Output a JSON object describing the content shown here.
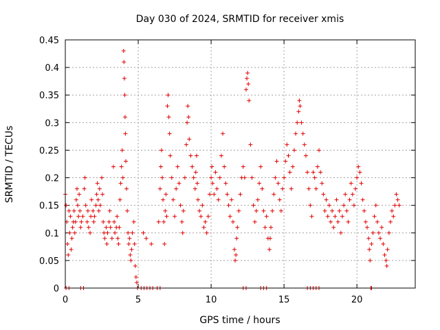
{
  "chart_data": {
    "type": "scatter",
    "title": "Day 030 of 2024, SRMTID for receiver xmis",
    "xlabel": "GPS time / hours",
    "ylabel": "SRMTID / TECUs",
    "xlim": [
      0,
      24
    ],
    "ylim": [
      0,
      0.45
    ],
    "xticks": [
      0,
      5,
      10,
      15,
      20
    ],
    "xtick_labels": [
      "0",
      "5",
      "10",
      "15",
      "20"
    ],
    "yticks": [
      0,
      0.05,
      0.1,
      0.15,
      0.2,
      0.25,
      0.3,
      0.35,
      0.4,
      0.45
    ],
    "ytick_labels": [
      "0",
      "0.05",
      "0.1",
      "0.15",
      "0.2",
      "0.25",
      "0.3",
      "0.35",
      "0.4",
      "0.45"
    ],
    "grid": true,
    "marker": "plus",
    "color": "#e00000",
    "series": [
      {
        "name": "SRMTID",
        "points": [
          [
            0.0,
            0.17
          ],
          [
            0.05,
            0.15
          ],
          [
            0.1,
            0.12
          ],
          [
            0.15,
            0.08
          ],
          [
            0.2,
            0.06
          ],
          [
            0.25,
            0.14
          ],
          [
            0.3,
            0.1
          ],
          [
            0.35,
            0.13
          ],
          [
            0.4,
            0.07
          ],
          [
            0.45,
            0.09
          ],
          [
            0.5,
            0.11
          ],
          [
            0.55,
            0.12
          ],
          [
            0.6,
            0.14
          ],
          [
            0.65,
            0.1
          ],
          [
            0.7,
            0.12
          ],
          [
            0.75,
            0.16
          ],
          [
            0.8,
            0.18
          ],
          [
            0.85,
            0.15
          ],
          [
            0.9,
            0.13
          ],
          [
            0.95,
            0.17
          ],
          [
            1.0,
            0.14
          ],
          [
            1.05,
            0.11
          ],
          [
            1.1,
            0.12
          ],
          [
            1.2,
            0.13
          ],
          [
            1.3,
            0.18
          ],
          [
            1.35,
            0.2
          ],
          [
            1.4,
            0.15
          ],
          [
            1.5,
            0.12
          ],
          [
            1.55,
            0.14
          ],
          [
            1.6,
            0.11
          ],
          [
            1.7,
            0.1
          ],
          [
            1.75,
            0.13
          ],
          [
            1.8,
            0.16
          ],
          [
            1.9,
            0.14
          ],
          [
            1.95,
            0.12
          ],
          [
            2.0,
            0.13
          ],
          [
            2.1,
            0.15
          ],
          [
            2.15,
            0.17
          ],
          [
            2.2,
            0.19
          ],
          [
            2.25,
            0.16
          ],
          [
            2.3,
            0.14
          ],
          [
            2.35,
            0.18
          ],
          [
            2.4,
            0.15
          ],
          [
            2.5,
            0.2
          ],
          [
            2.55,
            0.17
          ],
          [
            2.6,
            0.12
          ],
          [
            2.65,
            0.1
          ],
          [
            2.7,
            0.09
          ],
          [
            2.8,
            0.11
          ],
          [
            2.85,
            0.08
          ],
          [
            2.9,
            0.1
          ],
          [
            3.0,
            0.12
          ],
          [
            3.05,
            0.14
          ],
          [
            3.1,
            0.11
          ],
          [
            3.2,
            0.09
          ],
          [
            3.3,
            0.22
          ],
          [
            3.35,
            0.12
          ],
          [
            3.4,
            0.1
          ],
          [
            3.5,
            0.11
          ],
          [
            3.55,
            0.13
          ],
          [
            3.6,
            0.09
          ],
          [
            3.65,
            0.08
          ],
          [
            3.7,
            0.11
          ],
          [
            3.75,
            0.16
          ],
          [
            3.8,
            0.19
          ],
          [
            3.85,
            0.22
          ],
          [
            3.9,
            0.25
          ],
          [
            3.95,
            0.2
          ],
          [
            4.0,
            0.43
          ],
          [
            4.02,
            0.41
          ],
          [
            4.05,
            0.38
          ],
          [
            4.08,
            0.35
          ],
          [
            4.1,
            0.31
          ],
          [
            4.12,
            0.28
          ],
          [
            4.15,
            0.23
          ],
          [
            4.2,
            0.18
          ],
          [
            4.25,
            0.14
          ],
          [
            4.3,
            0.1
          ],
          [
            4.35,
            0.08
          ],
          [
            4.4,
            0.09
          ],
          [
            4.45,
            0.06
          ],
          [
            4.5,
            0.05
          ],
          [
            4.55,
            0.07
          ],
          [
            4.6,
            0.1
          ],
          [
            4.7,
            0.12
          ],
          [
            4.75,
            0.08
          ],
          [
            4.8,
            0.04
          ],
          [
            4.85,
            0.02
          ],
          [
            4.9,
            0.01
          ],
          [
            4.95,
            0.0
          ],
          [
            5.2,
            0.0
          ],
          [
            5.4,
            0.0
          ],
          [
            5.6,
            0.0
          ],
          [
            5.8,
            0.0
          ],
          [
            6.0,
            0.0
          ],
          [
            6.3,
            0.0
          ],
          [
            6.5,
            0.0
          ],
          [
            5.35,
            0.1
          ],
          [
            5.55,
            0.09
          ],
          [
            5.9,
            0.08
          ],
          [
            6.4,
            0.12
          ],
          [
            6.5,
            0.18
          ],
          [
            6.55,
            0.22
          ],
          [
            6.6,
            0.25
          ],
          [
            6.65,
            0.2
          ],
          [
            6.7,
            0.16
          ],
          [
            6.75,
            0.12
          ],
          [
            6.8,
            0.08
          ],
          [
            6.85,
            0.14
          ],
          [
            6.9,
            0.17
          ],
          [
            6.95,
            0.13
          ],
          [
            7.0,
            0.33
          ],
          [
            7.05,
            0.35
          ],
          [
            7.1,
            0.31
          ],
          [
            7.15,
            0.28
          ],
          [
            7.2,
            0.24
          ],
          [
            7.3,
            0.2
          ],
          [
            7.4,
            0.16
          ],
          [
            7.5,
            0.13
          ],
          [
            7.6,
            0.18
          ],
          [
            7.7,
            0.22
          ],
          [
            7.8,
            0.19
          ],
          [
            7.9,
            0.15
          ],
          [
            8.0,
            0.12
          ],
          [
            8.05,
            0.1
          ],
          [
            8.1,
            0.14
          ],
          [
            8.2,
            0.2
          ],
          [
            8.3,
            0.26
          ],
          [
            8.35,
            0.3
          ],
          [
            8.4,
            0.33
          ],
          [
            8.45,
            0.31
          ],
          [
            8.5,
            0.27
          ],
          [
            8.6,
            0.24
          ],
          [
            8.7,
            0.22
          ],
          [
            8.8,
            0.2
          ],
          [
            8.9,
            0.18
          ],
          [
            8.95,
            0.21
          ],
          [
            9.0,
            0.24
          ],
          [
            9.05,
            0.19
          ],
          [
            9.1,
            0.16
          ],
          [
            9.2,
            0.14
          ],
          [
            9.3,
            0.13
          ],
          [
            9.4,
            0.15
          ],
          [
            9.5,
            0.11
          ],
          [
            9.6,
            0.12
          ],
          [
            9.7,
            0.1
          ],
          [
            9.8,
            0.13
          ],
          [
            9.9,
            0.17
          ],
          [
            10.0,
            0.2
          ],
          [
            10.05,
            0.22
          ],
          [
            10.1,
            0.19
          ],
          [
            10.2,
            0.17
          ],
          [
            10.3,
            0.21
          ],
          [
            10.4,
            0.18
          ],
          [
            10.5,
            0.16
          ],
          [
            10.6,
            0.2
          ],
          [
            10.7,
            0.24
          ],
          [
            10.8,
            0.28
          ],
          [
            10.9,
            0.22
          ],
          [
            11.0,
            0.19
          ],
          [
            11.1,
            0.17
          ],
          [
            11.2,
            0.15
          ],
          [
            11.3,
            0.13
          ],
          [
            11.4,
            0.16
          ],
          [
            11.5,
            0.12
          ],
          [
            11.6,
            0.07
          ],
          [
            11.65,
            0.05
          ],
          [
            11.7,
            0.06
          ],
          [
            11.75,
            0.09
          ],
          [
            11.8,
            0.11
          ],
          [
            11.9,
            0.14
          ],
          [
            12.0,
            0.17
          ],
          [
            12.1,
            0.2
          ],
          [
            12.2,
            0.22
          ],
          [
            12.3,
            0.2
          ],
          [
            12.4,
            0.36
          ],
          [
            12.45,
            0.38
          ],
          [
            12.5,
            0.39
          ],
          [
            12.55,
            0.37
          ],
          [
            12.6,
            0.34
          ],
          [
            12.7,
            0.26
          ],
          [
            12.8,
            0.2
          ],
          [
            12.9,
            0.15
          ],
          [
            13.0,
            0.12
          ],
          [
            13.1,
            0.14
          ],
          [
            13.2,
            0.16
          ],
          [
            13.3,
            0.19
          ],
          [
            13.4,
            0.22
          ],
          [
            13.5,
            0.18
          ],
          [
            13.6,
            0.14
          ],
          [
            13.7,
            0.11
          ],
          [
            13.8,
            0.13
          ],
          [
            13.9,
            0.09
          ],
          [
            14.0,
            0.07
          ],
          [
            14.05,
            0.09
          ],
          [
            14.1,
            0.11
          ],
          [
            14.2,
            0.14
          ],
          [
            14.3,
            0.17
          ],
          [
            14.4,
            0.2
          ],
          [
            14.5,
            0.23
          ],
          [
            14.6,
            0.19
          ],
          [
            14.7,
            0.16
          ],
          [
            14.8,
            0.14
          ],
          [
            14.9,
            0.18
          ],
          [
            15.0,
            0.2
          ],
          [
            15.1,
            0.23
          ],
          [
            15.2,
            0.26
          ],
          [
            15.3,
            0.24
          ],
          [
            15.4,
            0.21
          ],
          [
            15.5,
            0.18
          ],
          [
            15.6,
            0.22
          ],
          [
            15.7,
            0.25
          ],
          [
            15.8,
            0.28
          ],
          [
            15.9,
            0.3
          ],
          [
            16.0,
            0.32
          ],
          [
            16.05,
            0.34
          ],
          [
            16.1,
            0.33
          ],
          [
            16.2,
            0.3
          ],
          [
            16.3,
            0.28
          ],
          [
            16.4,
            0.26
          ],
          [
            16.5,
            0.24
          ],
          [
            16.6,
            0.21
          ],
          [
            16.7,
            0.18
          ],
          [
            16.8,
            0.15
          ],
          [
            16.9,
            0.13
          ],
          [
            16.6,
            0.0
          ],
          [
            16.8,
            0.0
          ],
          [
            17.0,
            0.0
          ],
          [
            17.2,
            0.0
          ],
          [
            17.4,
            0.0
          ],
          [
            17.0,
            0.21
          ],
          [
            17.1,
            0.2
          ],
          [
            17.2,
            0.18
          ],
          [
            17.3,
            0.22
          ],
          [
            17.4,
            0.25
          ],
          [
            17.5,
            0.21
          ],
          [
            17.6,
            0.19
          ],
          [
            17.7,
            0.17
          ],
          [
            17.8,
            0.14
          ],
          [
            17.9,
            0.16
          ],
          [
            18.0,
            0.13
          ],
          [
            18.1,
            0.15
          ],
          [
            18.2,
            0.12
          ],
          [
            18.3,
            0.14
          ],
          [
            18.4,
            0.11
          ],
          [
            18.5,
            0.13
          ],
          [
            18.6,
            0.16
          ],
          [
            18.7,
            0.12
          ],
          [
            18.8,
            0.14
          ],
          [
            18.9,
            0.1
          ],
          [
            19.0,
            0.13
          ],
          [
            19.1,
            0.15
          ],
          [
            19.2,
            0.17
          ],
          [
            19.3,
            0.14
          ],
          [
            19.4,
            0.12
          ],
          [
            19.5,
            0.16
          ],
          [
            19.6,
            0.19
          ],
          [
            19.7,
            0.17
          ],
          [
            19.8,
            0.15
          ],
          [
            19.9,
            0.18
          ],
          [
            20.0,
            0.2
          ],
          [
            20.1,
            0.22
          ],
          [
            20.2,
            0.21
          ],
          [
            20.3,
            0.19
          ],
          [
            20.4,
            0.16
          ],
          [
            20.5,
            0.14
          ],
          [
            20.6,
            0.12
          ],
          [
            20.7,
            0.11
          ],
          [
            20.8,
            0.09
          ],
          [
            20.85,
            0.07
          ],
          [
            20.9,
            0.05
          ],
          [
            20.95,
            0.0
          ],
          [
            21.0,
            0.08
          ],
          [
            21.1,
            0.1
          ],
          [
            21.2,
            0.13
          ],
          [
            21.3,
            0.15
          ],
          [
            21.4,
            0.12
          ],
          [
            21.5,
            0.1
          ],
          [
            21.6,
            0.09
          ],
          [
            21.7,
            0.11
          ],
          [
            21.8,
            0.08
          ],
          [
            21.9,
            0.06
          ],
          [
            22.0,
            0.05
          ],
          [
            22.05,
            0.04
          ],
          [
            22.1,
            0.07
          ],
          [
            22.2,
            0.1
          ],
          [
            22.3,
            0.12
          ],
          [
            22.4,
            0.14
          ],
          [
            22.5,
            0.13
          ],
          [
            22.6,
            0.15
          ],
          [
            22.7,
            0.17
          ],
          [
            22.8,
            0.16
          ],
          [
            22.9,
            0.15
          ],
          [
            0.05,
            0.0
          ],
          [
            0.25,
            0.0
          ],
          [
            1.05,
            0.0
          ],
          [
            1.25,
            0.0
          ],
          [
            12.2,
            0.0
          ],
          [
            12.4,
            0.0
          ],
          [
            13.4,
            0.0
          ],
          [
            13.6,
            0.0
          ],
          [
            13.8,
            0.0
          ],
          [
            21.0,
            0.0
          ]
        ]
      }
    ]
  }
}
